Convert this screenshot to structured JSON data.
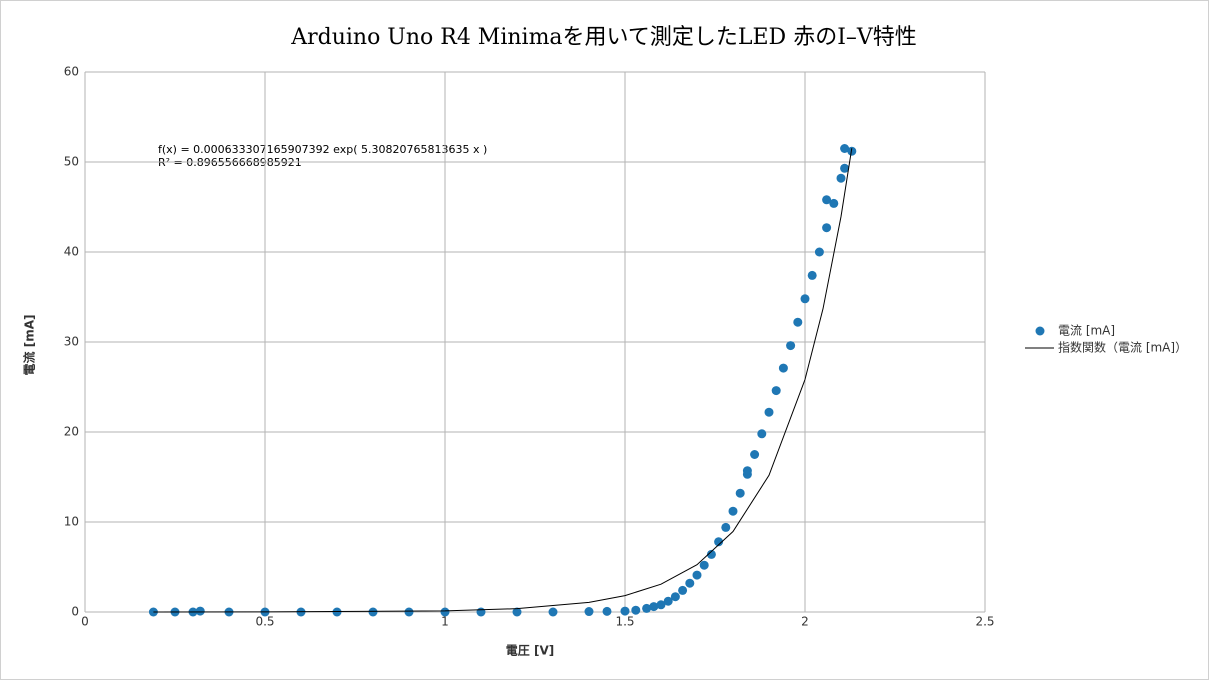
{
  "chart_data": {
    "type": "scatter",
    "title": "Arduino Uno R4 Minimaを用いて測定したLED 赤のI–V特性",
    "x_label": "電圧 [V]",
    "y_label": "電流 [mA]",
    "annotation": [
      "f(x) = 0.000633307165907392 exp( 5.30820765813635 x )",
      "R² = 0.896556668985921"
    ],
    "xlim": [
      0,
      2.5
    ],
    "xticks": [
      0,
      0.5,
      1,
      1.5,
      2,
      2.5
    ],
    "ylim": [
      0,
      60
    ],
    "yticks": [
      0,
      10,
      20,
      30,
      40,
      50,
      60
    ],
    "grid": true,
    "legend": "right",
    "series": [
      {
        "name": "電流 [mA]",
        "color": "#1f77b4",
        "mark": "scatter",
        "x": [
          0.19,
          0.25,
          0.3,
          0.32,
          0.4,
          0.5,
          0.6,
          0.7,
          0.8,
          0.9,
          1.0,
          1.1,
          1.2,
          1.3,
          1.4,
          1.45,
          1.5,
          1.53,
          1.56,
          1.58,
          1.6,
          1.62,
          1.64,
          1.66,
          1.68,
          1.7,
          1.72,
          1.74,
          1.76,
          1.78,
          1.8,
          1.82,
          1.84,
          1.86,
          1.88,
          1.9,
          1.92,
          1.94,
          1.96,
          1.98,
          2.0,
          2.02,
          2.04,
          2.06,
          2.08,
          2.1,
          2.11,
          2.13,
          1.84,
          2.06,
          2.11
        ],
        "values": [
          0,
          0,
          0,
          0.1,
          0,
          0,
          0,
          0,
          0,
          0,
          0,
          0,
          0,
          0,
          0.05,
          0.07,
          0.1,
          0.2,
          0.4,
          0.6,
          0.8,
          1.2,
          1.7,
          2.4,
          3.2,
          4.1,
          5.2,
          6.4,
          7.8,
          9.4,
          11.2,
          13.2,
          15.3,
          17.5,
          19.8,
          22.2,
          24.6,
          27.1,
          29.6,
          32.2,
          34.8,
          37.4,
          40.0,
          42.7,
          45.4,
          48.2,
          51.5,
          51.2,
          15.7,
          45.8,
          49.3
        ]
      },
      {
        "name": "指数関数（電流 [mA]）",
        "color": "#000000",
        "mark": "line",
        "x": [
          0.19,
          0.5,
          1.0,
          1.2,
          1.4,
          1.5,
          1.6,
          1.7,
          1.8,
          1.9,
          2.0,
          2.05,
          2.1,
          2.13
        ],
        "values": [
          0.00174,
          0.009,
          0.128,
          0.37,
          1.07,
          1.82,
          3.09,
          5.25,
          8.94,
          15.19,
          25.83,
          33.69,
          43.93,
          51.53
        ]
      }
    ]
  }
}
